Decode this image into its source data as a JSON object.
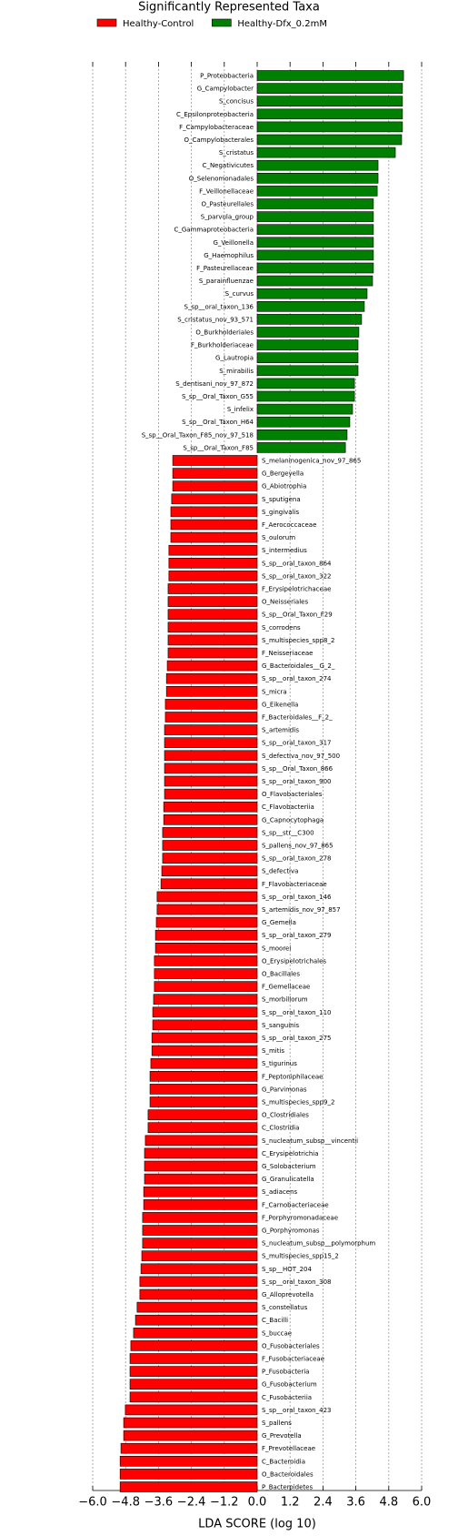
{
  "chart_data": {
    "type": "bar",
    "orientation": "horizontal",
    "title": "Significantly Represented Taxa",
    "x_label": "LDA SCORE (log 10)",
    "xlim": [
      -6,
      6
    ],
    "xticks": [
      {
        "value": -6,
        "label": "−6.0"
      },
      {
        "value": -4.8,
        "label": "−4.8"
      },
      {
        "value": -3.6,
        "label": "−3.6"
      },
      {
        "value": -2.4,
        "label": "−2.4"
      },
      {
        "value": -1.2,
        "label": "−1.2"
      },
      {
        "value": 0,
        "label": "0.0"
      },
      {
        "value": 1.2,
        "label": "1.2"
      },
      {
        "value": 2.4,
        "label": "2.4"
      },
      {
        "value": 3.6,
        "label": "3.6"
      },
      {
        "value": 4.8,
        "label": "4.8"
      },
      {
        "value": 6,
        "label": "6.0"
      }
    ],
    "grid": true,
    "categories": [
      "P_Proteobacteria",
      "G_Campylobacter",
      "S_concisus",
      "C_Epsilonproteobacteria",
      "F_Campylobacteraceae",
      "O_Campylobacterales",
      "S_cristatus",
      "C_Negativicutes",
      "O_Selenomonadales",
      "F_Veillonellaceae",
      "O_Pasteurellales",
      "S_parvula_group",
      "C_Gammaproteobacteria",
      "G_Veillonella",
      "G_Haemophilus",
      "F_Pasteurellaceae",
      "S_parainfluenzae",
      "S_curvus",
      "S_sp__oral_taxon_136",
      "S_cristatus_nov_93_571",
      "O_Burkholderiales",
      "F_Burkholderiaceae",
      "G_Lautropia",
      "S_mirabilis",
      "S_dentisani_nov_97_872",
      "S_sp__Oral_Taxon_G55",
      "S_infelix",
      "S_sp__Oral_Taxon_H64",
      "S_sp__Oral_Taxon_F85_nov_97_518",
      "S_sp__Oral_Taxon_F85",
      "S_melaninogenica_nov_97_865",
      "G_Bergeyella",
      "G_Abiotrophia",
      "S_sputigena",
      "S_gingivalis",
      "F_Aerococcaceae",
      "S_oulorum",
      "S_intermedius",
      "S_sp__oral_taxon_864",
      "S_sp__oral_taxon_322",
      "F_Erysipelotrichaceae",
      "O_Neisseriales",
      "S_sp__Oral_Taxon_F29",
      "S_corrodens",
      "S_multispecies_spp8_2",
      "F_Neisseriaceae",
      "G_Bacteroidales__G_2_",
      "S_sp__oral_taxon_274",
      "S_micra",
      "G_Eikenella",
      "F_Bacteroidales__F_2_",
      "S_artemidis",
      "S_sp__oral_taxon_317",
      "S_defectiva_nov_97_500",
      "S_sp__Oral_Taxon_866",
      "S_sp__oral_taxon_900",
      "O_Flavobacteriales",
      "C_Flavobacteriia",
      "G_Capnocytophaga",
      "S_sp__str__C300",
      "S_pallens_nov_97_865",
      "S_sp__oral_taxon_278",
      "S_defectiva",
      "F_Flavobacteriaceae",
      "S_sp__oral_taxon_146",
      "S_artemidis_nov_97_857",
      "G_Gemella",
      "S_sp__oral_taxon_279",
      "S_moorei",
      "O_Erysipelotrichales",
      "O_Bacillales",
      "F_Gemellaceae",
      "S_morbillorum",
      "S_sp__oral_taxon_110",
      "S_sanguinis",
      "S_sp__oral_taxon_275",
      "S_mitis",
      "S_tigurinus",
      "F_Peptoniphilaceae",
      "G_Parvimonas",
      "S_multispecies_spp9_2",
      "O_Clostridiales",
      "C_Clostridia",
      "S_nucleatum_subsp__vincentii",
      "C_Erysipelotrichia",
      "G_Solobacterium",
      "G_Granulicatella",
      "S_adiacens",
      "F_Carnobacteriaceae",
      "F_Porphyromonadaceae",
      "G_Porphyromonas",
      "S_nucleatum_subsp__polymorphum",
      "S_multispecies_spp15_2",
      "S_sp__HOT_204",
      "S_sp__oral_taxon_308",
      "G_Alloprevotella",
      "S_constellatus",
      "C_Bacilli",
      "S_buccae",
      "O_Fusobacteriales",
      "F_Fusobacteriaceae",
      "P_Fusobacteria",
      "G_Fusobacterium",
      "C_Fusobacteriia",
      "S_sp__oral_taxon_423",
      "S_pallens",
      "G_Prevotella",
      "F_Prevotellaceae",
      "C_Bacteroidia",
      "O_Bacteroidales",
      "P_Bacteroidetes"
    ],
    "series": [
      {
        "name": "Healthy-Control",
        "color": "#ff0000",
        "values": [
          null,
          null,
          null,
          null,
          null,
          null,
          null,
          null,
          null,
          null,
          null,
          null,
          null,
          null,
          null,
          null,
          null,
          null,
          null,
          null,
          null,
          null,
          null,
          null,
          null,
          null,
          null,
          null,
          null,
          null,
          -3.08,
          -3.08,
          -3.08,
          -3.12,
          -3.15,
          -3.15,
          -3.15,
          -3.22,
          -3.22,
          -3.22,
          -3.25,
          -3.25,
          -3.25,
          -3.25,
          -3.25,
          -3.25,
          -3.28,
          -3.31,
          -3.31,
          -3.35,
          -3.35,
          -3.38,
          -3.38,
          -3.38,
          -3.38,
          -3.38,
          -3.38,
          -3.41,
          -3.41,
          -3.45,
          -3.45,
          -3.45,
          -3.48,
          -3.51,
          -3.65,
          -3.65,
          -3.68,
          -3.71,
          -3.71,
          -3.75,
          -3.75,
          -3.75,
          -3.78,
          -3.81,
          -3.81,
          -3.84,
          -3.84,
          -3.88,
          -3.91,
          -3.91,
          -3.91,
          -3.98,
          -3.98,
          -4.08,
          -4.11,
          -4.11,
          -4.11,
          -4.14,
          -4.14,
          -4.18,
          -4.18,
          -4.18,
          -4.21,
          -4.24,
          -4.28,
          -4.28,
          -4.38,
          -4.44,
          -4.51,
          -4.61,
          -4.64,
          -4.64,
          -4.64,
          -4.64,
          -4.81,
          -4.87,
          -4.87,
          -4.97,
          -5.0,
          -5.0,
          -5.0
        ]
      },
      {
        "name": "Healthy-Dfx_0.2mM",
        "color": "#008000",
        "values": [
          5.34,
          5.3,
          5.3,
          5.3,
          5.3,
          5.27,
          5.04,
          4.41,
          4.41,
          4.38,
          4.24,
          4.24,
          4.24,
          4.24,
          4.24,
          4.24,
          4.21,
          4.01,
          3.91,
          3.81,
          3.71,
          3.68,
          3.68,
          3.68,
          3.55,
          3.55,
          3.48,
          3.38,
          3.28,
          3.22,
          null,
          null,
          null,
          null,
          null,
          null,
          null,
          null,
          null,
          null,
          null,
          null,
          null,
          null,
          null,
          null,
          null,
          null,
          null,
          null,
          null,
          null,
          null,
          null,
          null,
          null,
          null,
          null,
          null,
          null,
          null,
          null,
          null,
          null,
          null,
          null,
          null,
          null,
          null,
          null,
          null,
          null,
          null,
          null,
          null,
          null,
          null,
          null,
          null,
          null,
          null,
          null,
          null,
          null,
          null,
          null,
          null,
          null,
          null,
          null,
          null,
          null,
          null,
          null,
          null,
          null,
          null,
          null,
          null,
          null,
          null,
          null,
          null,
          null,
          null,
          null,
          null,
          null,
          null,
          null,
          null
        ]
      }
    ]
  }
}
